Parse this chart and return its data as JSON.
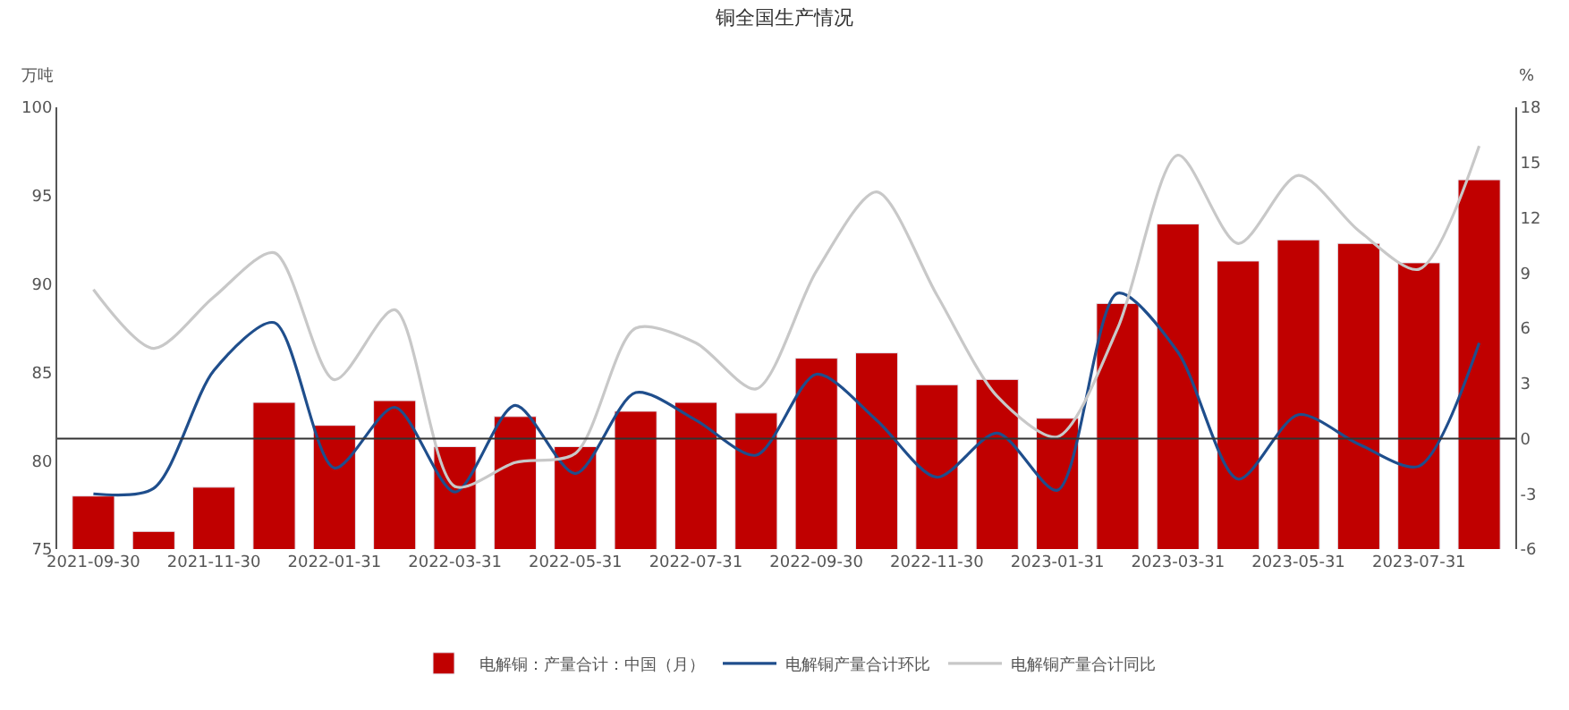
{
  "chart_data": {
    "type": "bar",
    "title": "铜全国生产情况",
    "ylabel": "万吨",
    "y2label": "%",
    "categories": [
      "2021-09-30",
      null,
      "2021-11-30",
      null,
      "2022-01-31",
      null,
      "2022-03-31",
      null,
      "2022-05-31",
      null,
      "2022-07-31",
      null,
      "2022-09-30",
      null,
      "2022-11-30",
      null,
      "2023-01-31",
      null,
      "2023-03-31",
      null,
      "2023-05-31",
      null,
      "2023-07-31",
      null
    ],
    "series": [
      {
        "name": "电解铜：产量合计：中国（月）",
        "color": "#c00000",
        "values": [
          78.0,
          76.0,
          78.5,
          83.3,
          82.0,
          83.4,
          80.8,
          82.5,
          80.8,
          82.8,
          83.3,
          82.7,
          85.8,
          86.1,
          84.3,
          84.6,
          82.4,
          88.9,
          93.4,
          91.3,
          92.5,
          92.3,
          91.2,
          95.9
        ]
      },
      {
        "name": "电解铜产量合计环比",
        "type": "line",
        "axis": "y2",
        "color": "#1f4e8c",
        "values": [
          -3.0,
          -2.7,
          3.7,
          6.3,
          -1.6,
          1.7,
          -2.9,
          1.8,
          -1.9,
          2.5,
          1.0,
          -0.9,
          3.5,
          1.0,
          -2.1,
          0.3,
          -2.8,
          7.9,
          4.7,
          -2.2,
          1.3,
          -0.3,
          -1.5,
          5.2
        ]
      },
      {
        "name": "电解铜产量合计同比",
        "type": "line",
        "axis": "y2",
        "color": "#c8c8c8",
        "values": [
          8.1,
          4.9,
          7.7,
          10.1,
          3.2,
          7.0,
          -2.6,
          -1.3,
          -0.8,
          6.0,
          5.2,
          2.7,
          9.1,
          13.4,
          7.8,
          2.3,
          0.1,
          6.0,
          15.4,
          10.6,
          14.3,
          11.3,
          9.2,
          15.9
        ]
      }
    ],
    "ylim": [
      75,
      100
    ],
    "yticks": [
      75,
      80,
      85,
      90,
      95,
      100
    ],
    "y2lim": [
      -6,
      18
    ],
    "y2ticks": [
      -6,
      -3,
      0,
      3,
      6,
      9,
      12,
      15,
      18
    ],
    "ref_lines": [
      {
        "axis": "y2",
        "value": 0,
        "color": "#333333"
      }
    ],
    "legend": "bottom",
    "marker": "none",
    "line_style": "solid"
  }
}
